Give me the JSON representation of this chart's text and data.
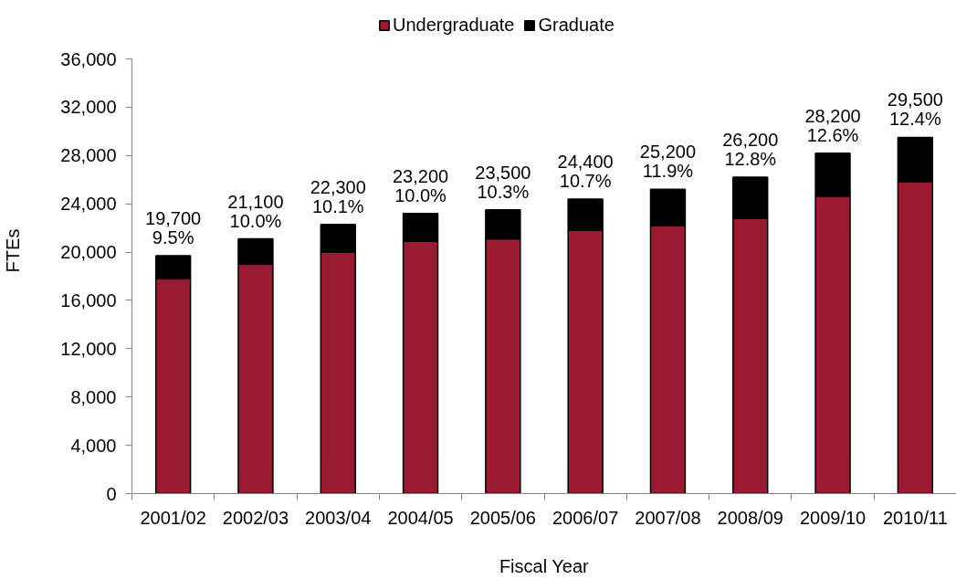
{
  "chart_data": {
    "type": "bar",
    "stacked": true,
    "xlabel": "Fiscal Year",
    "ylabel": "FTEs",
    "categories": [
      "2001/02",
      "2002/03",
      "2003/04",
      "2004/05",
      "2005/06",
      "2006/07",
      "2007/08",
      "2008/09",
      "2009/10",
      "2010/11"
    ],
    "series": [
      {
        "name": "Undergraduate",
        "color": "#981b31",
        "values": [
          17800,
          19000,
          20000,
          20900,
          21100,
          21800,
          22200,
          22800,
          24600,
          25800
        ]
      },
      {
        "name": "Graduate",
        "color": "#000000",
        "values": [
          1900,
          2100,
          2300,
          2300,
          2400,
          2600,
          3000,
          3400,
          3600,
          3700
        ]
      }
    ],
    "totals": [
      "19,700",
      "21,100",
      "22,300",
      "23,200",
      "23,500",
      "24,400",
      "25,200",
      "26,200",
      "28,200",
      "29,500"
    ],
    "annotations": [
      {
        "text": "9.5%",
        "x": "2001/02",
        "y": 19700
      },
      {
        "text": "10.0%",
        "x": "2002/03",
        "y": 21100
      },
      {
        "text": "10.1%",
        "x": "2003/04",
        "y": 22300
      },
      {
        "text": "10.0%",
        "x": "2004/05",
        "y": 23200
      },
      {
        "text": "10.3%",
        "x": "2005/06",
        "y": 23500
      },
      {
        "text": "10.7%",
        "x": "2006/07",
        "y": 24400
      },
      {
        "text": "11.9%",
        "x": "2007/08",
        "y": 25200
      },
      {
        "text": "12.8%",
        "x": "2008/09",
        "y": 26200
      },
      {
        "text": "12.6%",
        "x": "2009/10",
        "y": 28200
      },
      {
        "text": "12.4%",
        "x": "2010/11",
        "y": 29500
      }
    ],
    "ylim": [
      0,
      36000
    ],
    "yticks": [
      0,
      {
        "value": 4000,
        "label": "4,000"
      },
      {
        "value": 8000,
        "label": "8,000"
      },
      {
        "value": 12000,
        "label": "12,000"
      },
      {
        "value": 16000,
        "label": "16,000"
      },
      {
        "value": 20000,
        "label": "20,000"
      },
      {
        "value": 24000,
        "label": "24,000"
      },
      {
        "value": 28000,
        "label": "28,000"
      },
      {
        "value": 32000,
        "label": "32,000"
      },
      {
        "value": 36000,
        "label": "36,000"
      }
    ],
    "legend": "top",
    "grid": false
  }
}
